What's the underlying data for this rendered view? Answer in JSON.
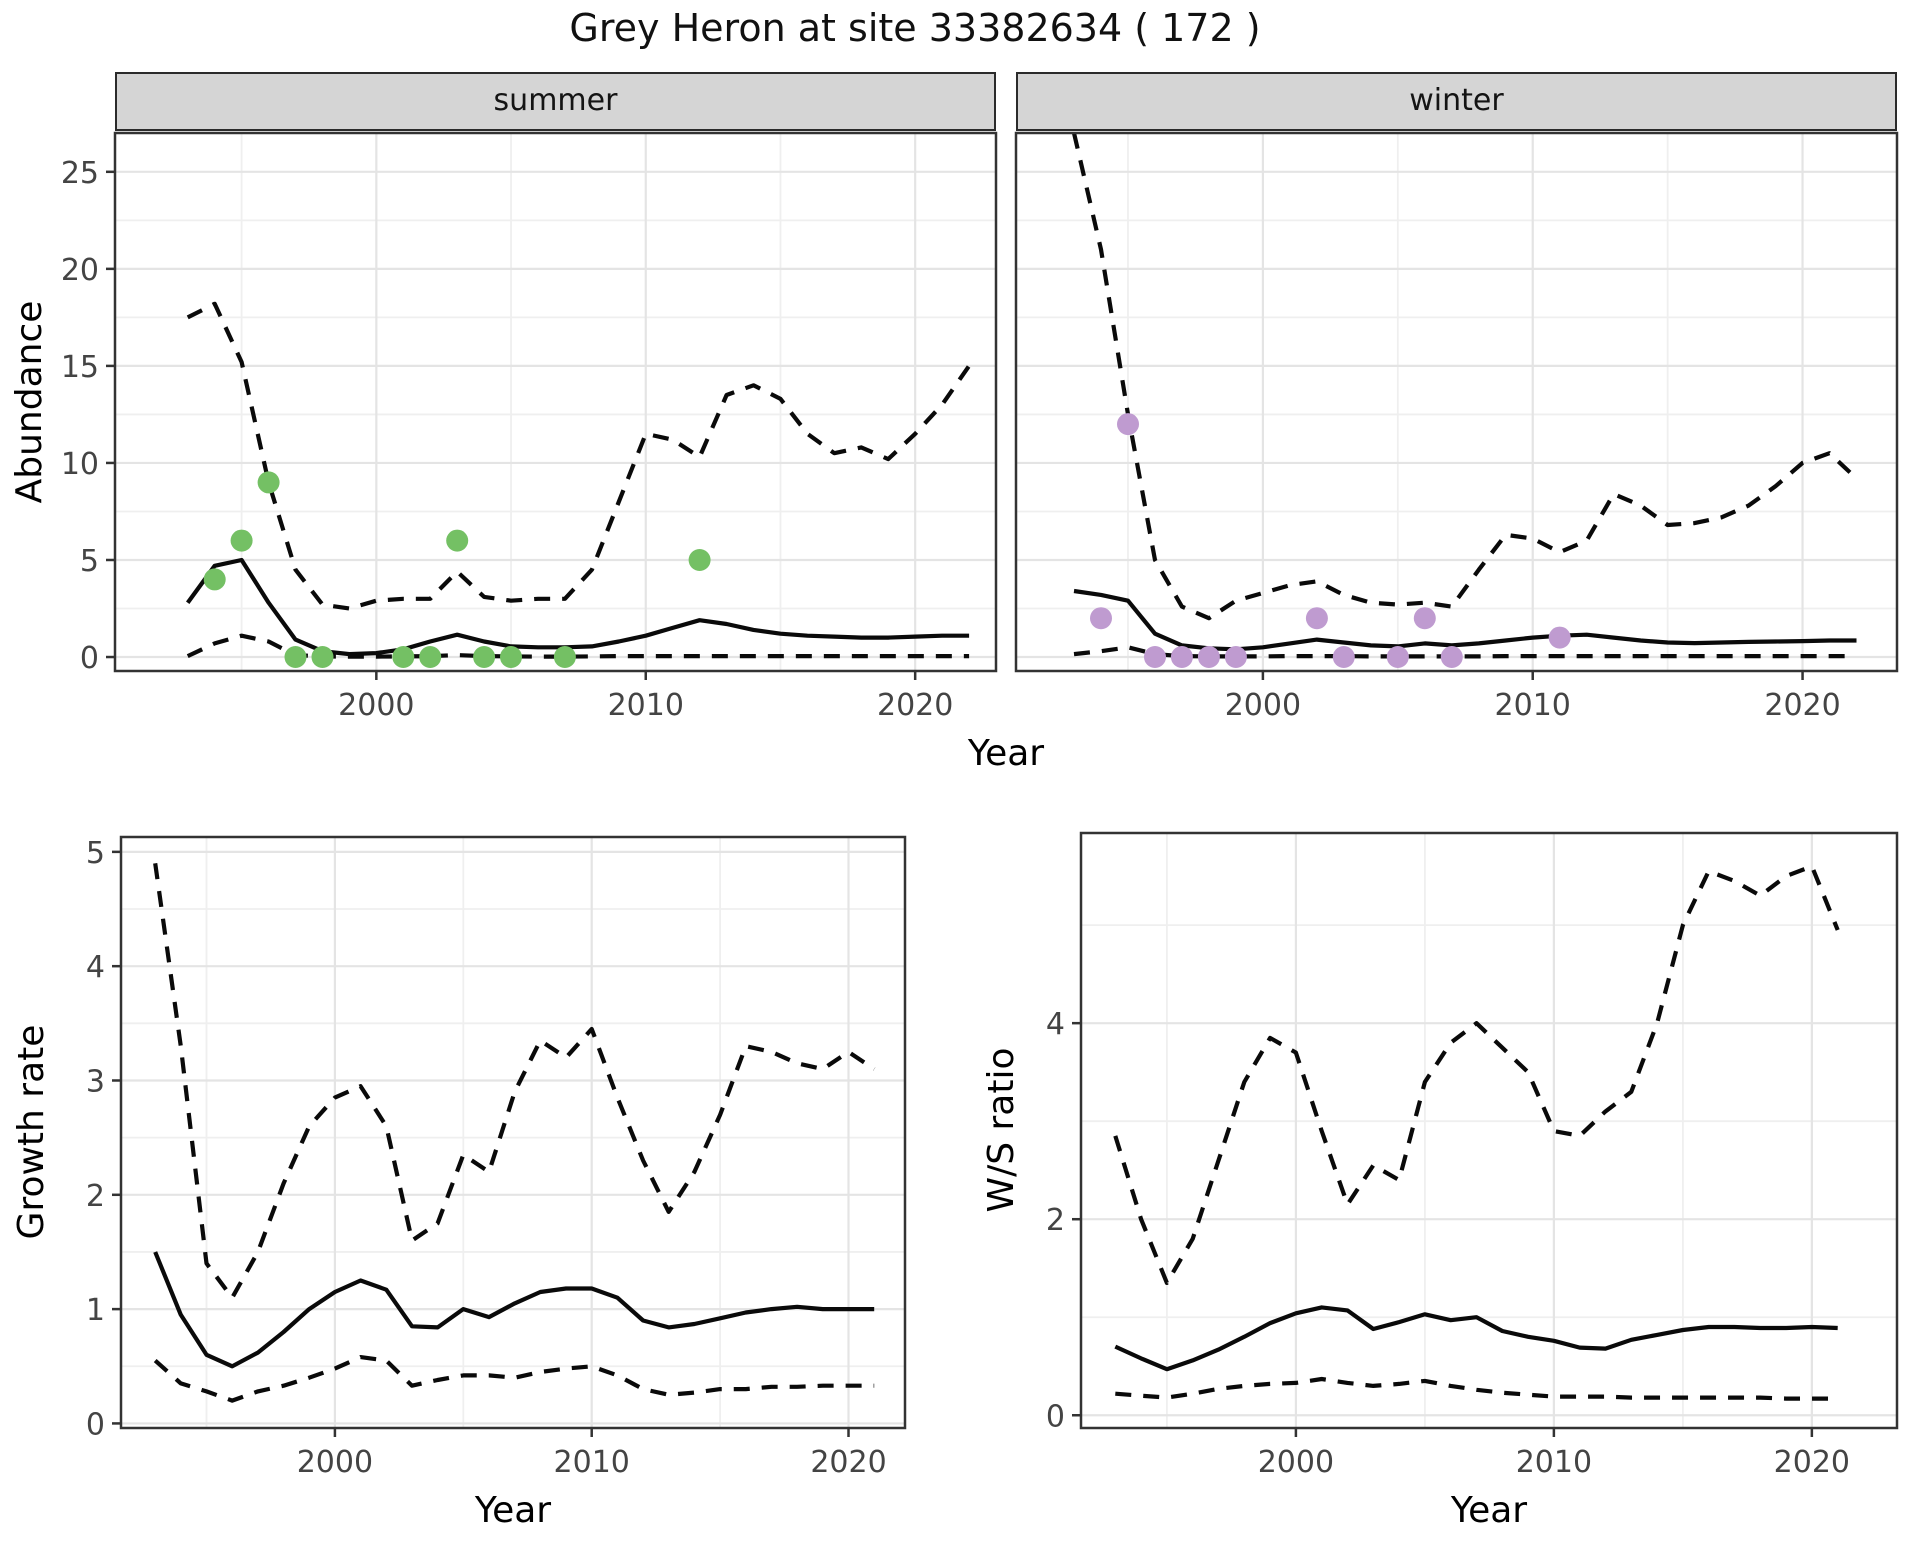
{
  "title": "Grey Heron at site 33382634 ( 172 )",
  "colors": {
    "summer_points": "#74c064",
    "winter_points": "#bf9bd0",
    "line": "#0a0a0a",
    "grid_major": "#e4e4e4",
    "grid_minor": "#efefef",
    "panel_border": "#333333",
    "strip_fill": "#d5d5d5",
    "tick_label": "#444444"
  },
  "chart_data": [
    {
      "id": "abundance-summer",
      "type": "line",
      "facet_label": "summer",
      "xlabel": "Year",
      "ylabel": "Abundance",
      "xlim": [
        1990.3,
        2023.0
      ],
      "ylim": [
        -0.72,
        27.0
      ],
      "x_ticks": [
        2000,
        2010,
        2020
      ],
      "x_minor": [
        1995,
        2005,
        2015
      ],
      "y_ticks": [
        0,
        5,
        10,
        15,
        20,
        25
      ],
      "y_minor": [
        2.5,
        7.5,
        12.5,
        17.5,
        22.5
      ],
      "years": [
        1993,
        1994,
        1995,
        1996,
        1997,
        1998,
        1999,
        2000,
        2001,
        2002,
        2003,
        2004,
        2005,
        2006,
        2007,
        2008,
        2009,
        2010,
        2011,
        2012,
        2013,
        2014,
        2015,
        2016,
        2017,
        2018,
        2019,
        2020,
        2021,
        2022
      ],
      "series": [
        {
          "name": "fit-median",
          "style": "solid",
          "values": [
            2.8,
            4.7,
            5.0,
            2.8,
            0.9,
            0.3,
            0.15,
            0.2,
            0.4,
            0.8,
            1.15,
            0.8,
            0.55,
            0.5,
            0.5,
            0.55,
            0.8,
            1.1,
            1.5,
            1.9,
            1.7,
            1.4,
            1.2,
            1.1,
            1.05,
            1.0,
            1.0,
            1.05,
            1.1,
            1.1
          ]
        },
        {
          "name": "ci-upper",
          "style": "dashed",
          "values": [
            17.5,
            18.2,
            15.2,
            9.0,
            4.5,
            2.7,
            2.5,
            2.9,
            3.0,
            3.0,
            4.4,
            3.1,
            2.9,
            3.0,
            3.0,
            4.5,
            8.0,
            11.5,
            11.2,
            10.3,
            13.5,
            14.0,
            13.3,
            11.5,
            10.5,
            10.8,
            10.2,
            11.5,
            13.0,
            15.0
          ]
        },
        {
          "name": "ci-lower",
          "style": "dashed",
          "values": [
            0.05,
            0.7,
            1.1,
            0.8,
            0.1,
            0.03,
            0.02,
            0.02,
            0.03,
            0.05,
            0.1,
            0.05,
            0.03,
            0.02,
            0.02,
            0.03,
            0.05,
            0.05,
            0.05,
            0.05,
            0.05,
            0.05,
            0.05,
            0.05,
            0.05,
            0.05,
            0.05,
            0.05,
            0.05,
            0.05
          ]
        }
      ],
      "points": {
        "name": "observed-counts-summer",
        "color": "#74c064",
        "x": [
          1994,
          1995,
          1996,
          1997,
          1998,
          2001,
          2002,
          2003,
          2004,
          2005,
          2007,
          2012
        ],
        "y": [
          4,
          6,
          9,
          0,
          0,
          0,
          0,
          6,
          0,
          0,
          0,
          5
        ]
      }
    },
    {
      "id": "abundance-winter",
      "type": "line",
      "facet_label": "winter",
      "xlabel": "Year",
      "ylabel": "Abundance",
      "xlim": [
        1990.85,
        2023.5
      ],
      "ylim": [
        -0.72,
        27.0
      ],
      "x_ticks": [
        2000,
        2010,
        2020
      ],
      "x_minor": [
        1995,
        2005,
        2015
      ],
      "y_ticks": [
        0,
        5,
        10,
        15,
        20,
        25
      ],
      "y_minor": [
        2.5,
        7.5,
        12.5,
        17.5,
        22.5
      ],
      "years": [
        1993,
        1994,
        1995,
        1996,
        1997,
        1998,
        1999,
        2000,
        2001,
        2002,
        2003,
        2004,
        2005,
        2006,
        2007,
        2008,
        2009,
        2010,
        2011,
        2012,
        2013,
        2014,
        2015,
        2016,
        2017,
        2018,
        2019,
        2020,
        2021,
        2022
      ],
      "series": [
        {
          "name": "fit-median",
          "style": "solid",
          "values": [
            3.4,
            3.2,
            2.9,
            1.2,
            0.6,
            0.45,
            0.4,
            0.5,
            0.7,
            0.9,
            0.75,
            0.6,
            0.55,
            0.7,
            0.6,
            0.7,
            0.85,
            1.0,
            1.1,
            1.15,
            1.0,
            0.85,
            0.75,
            0.72,
            0.75,
            0.78,
            0.8,
            0.82,
            0.85,
            0.85
          ]
        },
        {
          "name": "ci-upper",
          "style": "dashed",
          "values": [
            27.0,
            21.0,
            12.5,
            5.0,
            2.6,
            2.0,
            2.9,
            3.3,
            3.7,
            3.9,
            3.2,
            2.8,
            2.7,
            2.8,
            2.6,
            4.5,
            6.3,
            6.1,
            5.4,
            6.0,
            8.4,
            7.8,
            6.8,
            6.9,
            7.2,
            7.8,
            8.8,
            10.0,
            10.5,
            9.2
          ]
        },
        {
          "name": "ci-lower",
          "style": "dashed",
          "values": [
            0.15,
            0.3,
            0.5,
            0.15,
            0.05,
            0.03,
            0.03,
            0.03,
            0.05,
            0.05,
            0.05,
            0.03,
            0.03,
            0.03,
            0.03,
            0.03,
            0.05,
            0.05,
            0.05,
            0.05,
            0.05,
            0.05,
            0.05,
            0.05,
            0.05,
            0.05,
            0.05,
            0.05,
            0.05,
            0.05
          ]
        }
      ],
      "points": {
        "name": "observed-counts-winter",
        "color": "#bf9bd0",
        "x": [
          1994,
          1995,
          1996,
          1997,
          1998,
          1999,
          2002,
          2003,
          2005,
          2006,
          2007,
          2011
        ],
        "y": [
          2,
          12,
          0,
          0,
          0,
          0,
          2,
          0,
          0,
          2,
          0,
          1
        ]
      }
    },
    {
      "id": "growth-rate",
      "type": "line",
      "facet_label": "",
      "xlabel": "Year",
      "ylabel": "Growth rate",
      "xlim": [
        1991.67,
        2022.2
      ],
      "ylim": [
        -0.04,
        5.13
      ],
      "x_ticks": [
        2000,
        2010,
        2020
      ],
      "x_minor": [
        1995,
        2005,
        2015
      ],
      "y_ticks": [
        0,
        1,
        2,
        3,
        4,
        5
      ],
      "y_minor": [
        0.5,
        1.5,
        2.5,
        3.5,
        4.5
      ],
      "years": [
        1993,
        1994,
        1995,
        1996,
        1997,
        1998,
        1999,
        2000,
        2001,
        2002,
        2003,
        2004,
        2005,
        2006,
        2007,
        2008,
        2009,
        2010,
        2011,
        2012,
        2013,
        2014,
        2015,
        2016,
        2017,
        2018,
        2019,
        2020,
        2021
      ],
      "series": [
        {
          "name": "fit-median",
          "style": "solid",
          "values": [
            1.5,
            0.95,
            0.6,
            0.5,
            0.62,
            0.8,
            1.0,
            1.15,
            1.25,
            1.17,
            0.85,
            0.84,
            1.0,
            0.93,
            1.05,
            1.15,
            1.18,
            1.18,
            1.1,
            0.9,
            0.84,
            0.87,
            0.92,
            0.97,
            1.0,
            1.02,
            1.0,
            1.0,
            1.0
          ]
        },
        {
          "name": "ci-upper",
          "style": "dashed",
          "values": [
            4.9,
            3.3,
            1.4,
            1.1,
            1.5,
            2.1,
            2.6,
            2.85,
            2.95,
            2.6,
            1.6,
            1.75,
            2.35,
            2.2,
            2.9,
            3.35,
            3.2,
            3.45,
            2.85,
            2.3,
            1.85,
            2.2,
            2.7,
            3.3,
            3.25,
            3.15,
            3.1,
            3.25,
            3.1
          ]
        },
        {
          "name": "ci-lower",
          "style": "dashed",
          "values": [
            0.55,
            0.35,
            0.28,
            0.2,
            0.28,
            0.33,
            0.4,
            0.48,
            0.58,
            0.55,
            0.33,
            0.38,
            0.42,
            0.42,
            0.4,
            0.45,
            0.48,
            0.5,
            0.42,
            0.3,
            0.25,
            0.27,
            0.3,
            0.3,
            0.32,
            0.32,
            0.33,
            0.33,
            0.33
          ]
        }
      ],
      "points": null
    },
    {
      "id": "ws-ratio",
      "type": "line",
      "facet_label": "",
      "xlabel": "Year",
      "ylabel": "W/S ratio",
      "xlim": [
        1991.67,
        2023.3
      ],
      "ylim": [
        -0.13,
        5.94
      ],
      "x_ticks": [
        2000,
        2010,
        2020
      ],
      "x_minor": [
        1995,
        2005,
        2015
      ],
      "y_ticks": [
        0,
        2,
        4
      ],
      "y_minor": [
        1,
        3,
        5
      ],
      "years": [
        1993,
        1994,
        1995,
        1996,
        1997,
        1998,
        1999,
        2000,
        2001,
        2002,
        2003,
        2004,
        2005,
        2006,
        2007,
        2008,
        2009,
        2010,
        2011,
        2012,
        2013,
        2014,
        2015,
        2016,
        2017,
        2018,
        2019,
        2020,
        2021
      ],
      "series": [
        {
          "name": "fit-median",
          "style": "solid",
          "values": [
            0.7,
            0.58,
            0.47,
            0.56,
            0.67,
            0.8,
            0.94,
            1.04,
            1.1,
            1.07,
            0.88,
            0.95,
            1.03,
            0.97,
            1.0,
            0.86,
            0.8,
            0.76,
            0.69,
            0.68,
            0.77,
            0.82,
            0.87,
            0.9,
            0.9,
            0.89,
            0.89,
            0.9,
            0.89
          ]
        },
        {
          "name": "ci-upper",
          "style": "dashed",
          "values": [
            2.85,
            2.0,
            1.35,
            1.8,
            2.6,
            3.4,
            3.85,
            3.7,
            2.9,
            2.15,
            2.55,
            2.4,
            3.4,
            3.8,
            4.0,
            3.75,
            3.5,
            2.9,
            2.85,
            3.1,
            3.3,
            4.0,
            5.0,
            5.55,
            5.45,
            5.3,
            5.5,
            5.6,
            4.95
          ]
        },
        {
          "name": "ci-lower",
          "style": "dashed",
          "values": [
            0.22,
            0.2,
            0.18,
            0.22,
            0.27,
            0.3,
            0.32,
            0.33,
            0.37,
            0.33,
            0.3,
            0.32,
            0.35,
            0.3,
            0.26,
            0.23,
            0.21,
            0.19,
            0.19,
            0.19,
            0.18,
            0.18,
            0.18,
            0.18,
            0.18,
            0.18,
            0.17,
            0.17,
            0.17
          ]
        }
      ],
      "points": null
    }
  ]
}
